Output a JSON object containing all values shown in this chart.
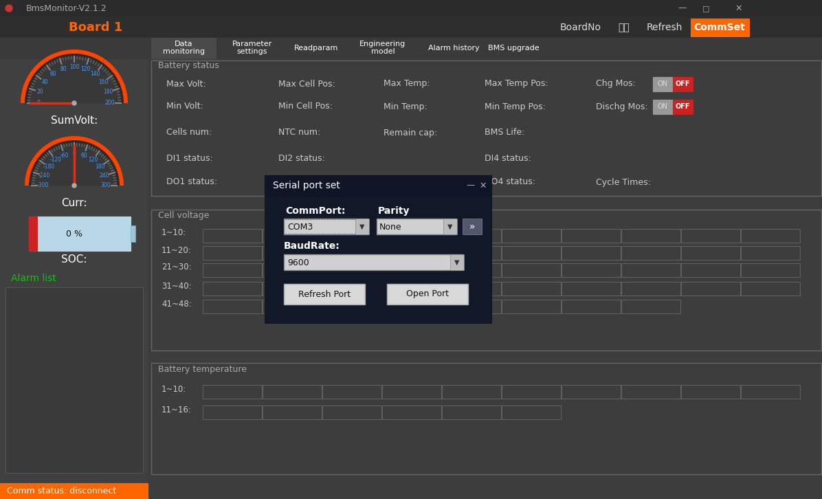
{
  "bg_color": "#3d3d3d",
  "title_bar_color": "#2b2b2b",
  "title_text": "BmsMonitor-V2.1.2",
  "board1_text": "Board 1",
  "board1_color": "#ff6600",
  "header_color": "#2e2e2e",
  "left_panel_color": "#404040",
  "nav_bar_color": "#3a3a3a",
  "nav_active_color": "#4a4a4a",
  "commset_color": "#ff6600",
  "status_bar_color": "#ff6600",
  "status_text": "Comm status: disconnect",
  "dialog_bg": "#111827",
  "dialog_title": "Serial port set",
  "commport_value": "COM3",
  "parity_value": "None",
  "baudrate_value": "9600",
  "button1": "Refresh Port",
  "button2": "Open Port",
  "sumvolt_label": "SumVolt:",
  "curr_label": "Curr:",
  "soc_label": "SOC:",
  "alarm_label": "Alarm list",
  "alarm_color": "#00cc00",
  "soc_value": "0 %",
  "cell_voltage_rows": [
    "1~10:",
    "11~20:",
    "21~30:",
    "31~40:",
    "41~48:"
  ],
  "temp_rows": [
    "1~10:",
    "11~16:"
  ],
  "gauge_orange": "#ff4400",
  "gauge_dark": "#2a2a2a",
  "gauge_inner": "#383838",
  "needle_color": "#ff2200",
  "blue_text": "#4499ff",
  "white_text": "#ffffff",
  "gray_text": "#aaaaaa",
  "label_text": "#cccccc",
  "section_border": "#666666",
  "grid_cell_bg": "#424242",
  "grid_border": "#606060",
  "battery_body": "#b8d8e8",
  "battery_red": "#cc2222",
  "toggle_on_bg": "#999999",
  "toggle_off_bg": "#cc2222",
  "toggle_frame": "#cccccc"
}
